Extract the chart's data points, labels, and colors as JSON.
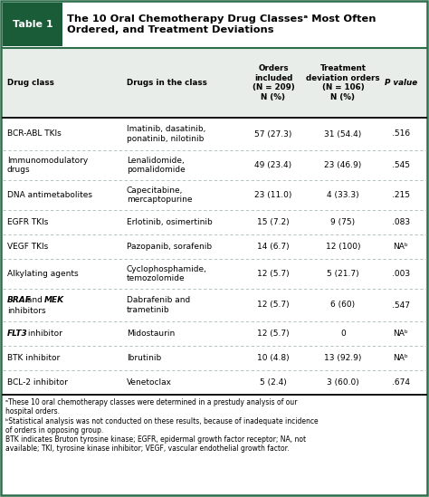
{
  "title_label": "Table 1",
  "title_text": "The 10 Oral Chemotherapy Drug Classesᵃ Most Often\nOrdered, and Treatment Deviations",
  "header_row": [
    "Drug class",
    "Drugs in the class",
    "Orders\nincluded\n(N = 209)\nN (%)",
    "Treatment\ndeviation orders\n(N = 106)\nN (%)",
    "P value"
  ],
  "rows": [
    [
      "BCR-ABL TKIs",
      "Imatinib, dasatinib,\nponatinib, nilotinib",
      "57 (27.3)",
      "31 (54.4)",
      ".516"
    ],
    [
      "Immunomodulatory\ndrugs",
      "Lenalidomide,\npomalidomide",
      "49 (23.4)",
      "23 (46.9)",
      ".545"
    ],
    [
      "DNA antimetabolites",
      "Capecitabine,\nmercaptopurine",
      "23 (11.0)",
      "4 (33.3)",
      ".215"
    ],
    [
      "EGFR TKIs",
      "Erlotinib, osimertinib",
      "15 (7.2)",
      "9 (75)",
      ".083"
    ],
    [
      "VEGF TKIs",
      "Pazopanib, sorafenib",
      "14 (6.7)",
      "12 (100)",
      "NAᵇ"
    ],
    [
      "Alkylating agents",
      "Cyclophosphamide,\ntemozolomide",
      "12 (5.7)",
      "5 (21.7)",
      ".003"
    ],
    [
      "BRAF_MEK",
      "Dabrafenib and\ntrametinib",
      "12 (5.7)",
      "6 (60)",
      ".547"
    ],
    [
      "FLT3_inhibitor",
      "Midostaurin",
      "12 (5.7)",
      "0",
      "NAᵇ"
    ],
    [
      "BTK inhibitor",
      "Ibrutinib",
      "10 (4.8)",
      "13 (92.9)",
      "NAᵇ"
    ],
    [
      "BCL-2 inhibitor",
      "Venetoclax",
      "5 (2.4)",
      "3 (60.0)",
      ".674"
    ]
  ],
  "footnotes": [
    "ᵃThese 10 oral chemotherapy classes were determined in a prestudy analysis of our\nhospital orders.",
    "ᵇStatistical analysis was not conducted on these results, because of inadequate incidence\nof orders in opposing group.",
    "BTK indicates Bruton tyrosine kinase; EGFR, epidermal growth factor receptor; NA, not\navailable; TKI, tyrosine kinase inhibitor; VEGF, vascular endothelial growth factor."
  ],
  "header_bg": "#1a5c38",
  "divider_color": "#aabcb0",
  "bg_color": "#ffffff",
  "outer_border_color": "#2d6e4a",
  "header_area_bg": "#e8ede9"
}
